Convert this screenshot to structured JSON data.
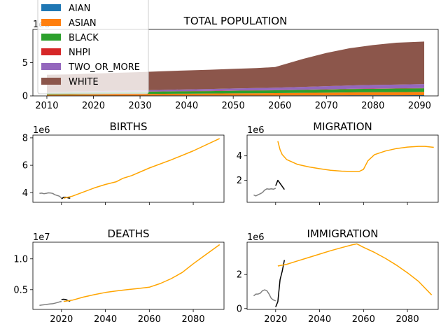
{
  "chart_data": [
    {
      "id": "total",
      "type": "area",
      "stacked": true,
      "title": "TOTAL POPULATION",
      "offset_label": "1e8",
      "x": [
        2010,
        2015,
        2020,
        2025,
        2030,
        2035,
        2040,
        2045,
        2050,
        2055,
        2059,
        2065,
        2070,
        2075,
        2080,
        2085,
        2091
      ],
      "xlim": [
        2007,
        2094
      ],
      "ylim": [
        0,
        10
      ],
      "xticks": [
        2010,
        2020,
        2030,
        2040,
        2050,
        2060,
        2070,
        2080,
        2090
      ],
      "yticks": [
        0,
        5
      ],
      "series": [
        {
          "name": "AIAN",
          "color": "#1f77b4",
          "values": [
            0.04,
            0.04,
            0.05,
            0.05,
            0.05,
            0.06,
            0.06,
            0.06,
            0.07,
            0.07,
            0.07,
            0.08,
            0.08,
            0.09,
            0.09,
            0.09,
            0.1
          ]
        },
        {
          "name": "ASIAN",
          "color": "#ff7f0e",
          "values": [
            0.15,
            0.17,
            0.19,
            0.21,
            0.23,
            0.25,
            0.27,
            0.29,
            0.31,
            0.33,
            0.35,
            0.38,
            0.41,
            0.44,
            0.46,
            0.48,
            0.5
          ]
        },
        {
          "name": "BLACK",
          "color": "#2ca02c",
          "values": [
            0.3,
            0.31,
            0.32,
            0.33,
            0.34,
            0.36,
            0.37,
            0.38,
            0.4,
            0.41,
            0.42,
            0.45,
            0.47,
            0.5,
            0.52,
            0.53,
            0.55
          ]
        },
        {
          "name": "NHPI",
          "color": "#d62728",
          "values": [
            0.02,
            0.02,
            0.02,
            0.02,
            0.02,
            0.02,
            0.03,
            0.03,
            0.03,
            0.03,
            0.03,
            0.03,
            0.04,
            0.04,
            0.04,
            0.04,
            0.04
          ]
        },
        {
          "name": "TWO_OR_MORE",
          "color": "#9467bd",
          "values": [
            0.07,
            0.1,
            0.13,
            0.16,
            0.19,
            0.22,
            0.25,
            0.28,
            0.31,
            0.34,
            0.37,
            0.42,
            0.46,
            0.5,
            0.53,
            0.56,
            0.58
          ]
        },
        {
          "name": "WHITE",
          "color": "#8c564b",
          "values": [
            2.6,
            2.6,
            2.65,
            2.7,
            2.75,
            2.8,
            2.85,
            2.9,
            2.95,
            3.0,
            3.1,
            4.2,
            5.0,
            5.6,
            6.0,
            6.3,
            6.4
          ]
        }
      ],
      "legend": {
        "placement": "upper-left"
      }
    },
    {
      "id": "births",
      "type": "line",
      "title": "BIRTHS",
      "offset_label": "1e6",
      "xlim": [
        2007,
        2094
      ],
      "ylim": [
        3.3,
        8.2
      ],
      "yticks": [
        4,
        6,
        8
      ],
      "xticks": [
        2020,
        2040,
        2060,
        2080
      ],
      "show_xtick_labels": false,
      "series": [
        {
          "color": "#808080",
          "points": [
            [
              2010,
              3.95
            ],
            [
              2011,
              3.97
            ],
            [
              2012,
              3.93
            ],
            [
              2013,
              3.95
            ],
            [
              2014,
              3.99
            ],
            [
              2015,
              3.98
            ],
            [
              2016,
              3.95
            ],
            [
              2017,
              3.85
            ],
            [
              2018,
              3.8
            ],
            [
              2019,
              3.75
            ],
            [
              2020,
              3.62
            ]
          ]
        },
        {
          "color": "#000000",
          "points": [
            [
              2020,
              3.55
            ],
            [
              2021,
              3.66
            ],
            [
              2022,
              3.67
            ],
            [
              2023,
              3.62
            ],
            [
              2024,
              3.6
            ]
          ]
        },
        {
          "color": "#ffa500",
          "points": [
            [
              2021,
              3.6
            ],
            [
              2025,
              3.75
            ],
            [
              2030,
              4.05
            ],
            [
              2035,
              4.35
            ],
            [
              2040,
              4.6
            ],
            [
              2045,
              4.8
            ],
            [
              2048,
              5.05
            ],
            [
              2052,
              5.25
            ],
            [
              2060,
              5.8
            ],
            [
              2070,
              6.4
            ],
            [
              2080,
              7.05
            ],
            [
              2092,
              7.95
            ]
          ]
        }
      ]
    },
    {
      "id": "migration",
      "type": "line",
      "title": "MIGRATION",
      "offset_label": "1e6",
      "xlim": [
        2007,
        2094
      ],
      "ylim": [
        0.2,
        5.7
      ],
      "yticks": [
        2,
        4
      ],
      "xticks": [
        2020,
        2040,
        2060,
        2080
      ],
      "show_xtick_labels": false,
      "series": [
        {
          "color": "#808080",
          "points": [
            [
              2010,
              0.8
            ],
            [
              2011,
              0.72
            ],
            [
              2012,
              0.82
            ],
            [
              2013,
              0.9
            ],
            [
              2014,
              1.0
            ],
            [
              2015,
              1.2
            ],
            [
              2016,
              1.3
            ],
            [
              2017,
              1.27
            ],
            [
              2018,
              1.3
            ],
            [
              2019,
              1.27
            ],
            [
              2020,
              1.35
            ]
          ]
        },
        {
          "color": "#000000",
          "points": [
            [
              2020,
              1.55
            ],
            [
              2021,
              2.0
            ],
            [
              2022,
              1.75
            ],
            [
              2023,
              1.5
            ],
            [
              2024,
              1.25
            ]
          ]
        },
        {
          "color": "#ffa500",
          "points": [
            [
              2021,
              5.2
            ],
            [
              2022,
              4.5
            ],
            [
              2023,
              4.1
            ],
            [
              2025,
              3.7
            ],
            [
              2030,
              3.3
            ],
            [
              2035,
              3.1
            ],
            [
              2040,
              2.95
            ],
            [
              2045,
              2.82
            ],
            [
              2050,
              2.75
            ],
            [
              2055,
              2.72
            ],
            [
              2058,
              2.72
            ],
            [
              2060,
              2.9
            ],
            [
              2062,
              3.6
            ],
            [
              2065,
              4.1
            ],
            [
              2070,
              4.4
            ],
            [
              2075,
              4.6
            ],
            [
              2080,
              4.72
            ],
            [
              2085,
              4.78
            ],
            [
              2088,
              4.78
            ],
            [
              2092,
              4.7
            ]
          ]
        }
      ]
    },
    {
      "id": "deaths",
      "type": "line",
      "title": "DEATHS",
      "offset_label": "1e7",
      "xlim": [
        2007,
        2094
      ],
      "ylim": [
        0.18,
        1.27
      ],
      "yticks": [
        0.5,
        1.0
      ],
      "ytick_labels": [
        "0.5",
        "1.0"
      ],
      "xticks": [
        2020,
        2040,
        2060,
        2080
      ],
      "show_xtick_labels": true,
      "series": [
        {
          "color": "#808080",
          "points": [
            [
              2010,
              0.245
            ],
            [
              2011,
              0.25
            ],
            [
              2012,
              0.255
            ],
            [
              2013,
              0.26
            ],
            [
              2014,
              0.265
            ],
            [
              2015,
              0.27
            ],
            [
              2016,
              0.272
            ],
            [
              2017,
              0.28
            ],
            [
              2018,
              0.29
            ],
            [
              2019,
              0.3
            ],
            [
              2020,
              0.31
            ]
          ]
        },
        {
          "color": "#000000",
          "points": [
            [
              2020,
              0.34
            ],
            [
              2021,
              0.345
            ],
            [
              2022,
              0.34
            ],
            [
              2023,
              0.32
            ],
            [
              2024,
              0.315
            ]
          ]
        },
        {
          "color": "#ffa500",
          "points": [
            [
              2021,
              0.31
            ],
            [
              2025,
              0.33
            ],
            [
              2030,
              0.38
            ],
            [
              2035,
              0.42
            ],
            [
              2040,
              0.455
            ],
            [
              2045,
              0.48
            ],
            [
              2050,
              0.5
            ],
            [
              2055,
              0.52
            ],
            [
              2060,
              0.54
            ],
            [
              2065,
              0.6
            ],
            [
              2070,
              0.68
            ],
            [
              2075,
              0.78
            ],
            [
              2080,
              0.92
            ],
            [
              2085,
              1.05
            ],
            [
              2092,
              1.23
            ]
          ]
        }
      ]
    },
    {
      "id": "immigration",
      "type": "line",
      "title": "IMMIGRATION",
      "offset_label": "1e6",
      "xlim": [
        2007,
        2094
      ],
      "ylim": [
        -0.05,
        3.9
      ],
      "yticks": [
        0,
        2
      ],
      "xticks": [
        2020,
        2040,
        2060,
        2080
      ],
      "show_xtick_labels": true,
      "series": [
        {
          "color": "#808080",
          "points": [
            [
              2010,
              0.75
            ],
            [
              2011,
              0.85
            ],
            [
              2012,
              0.85
            ],
            [
              2013,
              0.9
            ],
            [
              2014,
              1.05
            ],
            [
              2015,
              1.1
            ],
            [
              2016,
              1.05
            ],
            [
              2017,
              0.85
            ],
            [
              2018,
              0.6
            ],
            [
              2019,
              0.5
            ],
            [
              2020,
              0.45
            ]
          ]
        },
        {
          "color": "#000000",
          "points": [
            [
              2020,
              0.1
            ],
            [
              2021,
              0.4
            ],
            [
              2022,
              1.7
            ],
            [
              2023,
              2.2
            ],
            [
              2024,
              2.85
            ]
          ]
        },
        {
          "color": "#ffa500",
          "points": [
            [
              2021,
              2.5
            ],
            [
              2025,
              2.6
            ],
            [
              2030,
              2.8
            ],
            [
              2035,
              3.0
            ],
            [
              2040,
              3.2
            ],
            [
              2045,
              3.4
            ],
            [
              2050,
              3.58
            ],
            [
              2055,
              3.75
            ],
            [
              2057,
              3.8
            ],
            [
              2060,
              3.6
            ],
            [
              2065,
              3.3
            ],
            [
              2070,
              2.95
            ],
            [
              2075,
              2.55
            ],
            [
              2080,
              2.1
            ],
            [
              2085,
              1.6
            ],
            [
              2091,
              0.8
            ]
          ]
        }
      ]
    }
  ]
}
